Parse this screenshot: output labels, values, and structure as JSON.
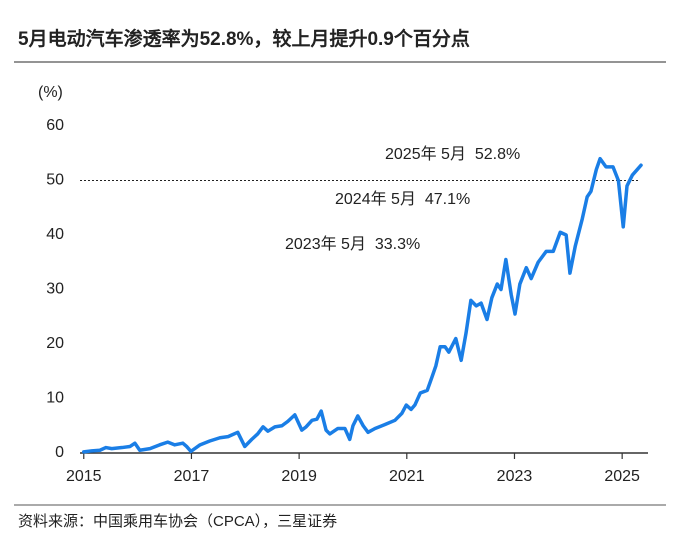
{
  "chart_data": {
    "type": "line",
    "title": "5月电动汽车渗透率为52.8%，较上月提升0.9个百分点",
    "y_unit": "(%)",
    "source": "资料来源：中国乘用车协会（CPCA），三星证券",
    "annotations": [
      "2025年 5月  52.8%",
      "2024年 5月  47.1%",
      "2023年 5月  33.3%"
    ],
    "reference_line": 50,
    "xlim": [
      2014.93,
      2025.48
    ],
    "xticks": [
      2015,
      2017,
      2019,
      2021,
      2023,
      2025
    ],
    "ylim": [
      0,
      60
    ],
    "yticks": [
      0,
      10,
      20,
      30,
      40,
      50,
      60
    ],
    "series": [
      {
        "color": "#1a7ee6",
        "x": [
          2015.0,
          2015.15,
          2015.3,
          2015.41,
          2015.52,
          2015.71,
          2015.86,
          2015.95,
          2016.04,
          2016.23,
          2016.41,
          2016.56,
          2016.69,
          2016.84,
          2016.91,
          2016.99,
          2017.16,
          2017.34,
          2017.53,
          2017.68,
          2017.86,
          2017.99,
          2018.12,
          2018.23,
          2018.33,
          2018.42,
          2018.55,
          2018.68,
          2018.79,
          2018.92,
          2019.05,
          2019.13,
          2019.24,
          2019.33,
          2019.41,
          2019.5,
          2019.57,
          2019.72,
          2019.85,
          2019.94,
          2020.0,
          2020.09,
          2020.19,
          2020.28,
          2020.41,
          2020.59,
          2020.78,
          2020.91,
          2020.99,
          2021.08,
          2021.15,
          2021.25,
          2021.38,
          2021.47,
          2021.54,
          2021.62,
          2021.71,
          2021.78,
          2021.91,
          2022.01,
          2022.1,
          2022.19,
          2022.29,
          2022.38,
          2022.49,
          2022.58,
          2022.68,
          2022.75,
          2022.84,
          2022.94,
          2023.01,
          2023.1,
          2023.22,
          2023.31,
          2023.44,
          2023.59,
          2023.72,
          2023.85,
          2023.96,
          2024.03,
          2024.13,
          2024.26,
          2024.35,
          2024.42,
          2024.52,
          2024.59,
          2024.7,
          2024.83,
          2024.93,
          2025.02,
          2025.09,
          2025.19,
          2025.28,
          2025.35
        ],
        "values": [
          0.2,
          0.4,
          0.5,
          1.0,
          0.8,
          1.0,
          1.2,
          1.8,
          0.5,
          0.8,
          1.5,
          2.0,
          1.5,
          1.8,
          1.2,
          0.3,
          1.5,
          2.2,
          2.8,
          3.0,
          3.8,
          1.2,
          2.5,
          3.5,
          4.8,
          4.0,
          4.8,
          5.0,
          5.8,
          7.0,
          4.2,
          4.8,
          6.0,
          6.2,
          7.7,
          4.2,
          3.5,
          4.5,
          4.5,
          2.5,
          5.0,
          6.8,
          5.0,
          3.8,
          4.5,
          5.2,
          6.0,
          7.3,
          8.8,
          8.0,
          8.8,
          11.0,
          11.5,
          14.0,
          16.0,
          19.5,
          19.5,
          18.5,
          21.0,
          17.0,
          22.0,
          28.0,
          27.0,
          27.5,
          24.5,
          28.5,
          31.0,
          30.0,
          35.5,
          29.0,
          25.5,
          31.0,
          34.0,
          32.0,
          35.0,
          37.0,
          37.0,
          40.5,
          40.0,
          33.0,
          38.0,
          43.0,
          47.0,
          48.0,
          52.0,
          54.0,
          52.5,
          52.5,
          50.0,
          41.5,
          49.0,
          51.0,
          52.0,
          52.8
        ]
      }
    ]
  }
}
